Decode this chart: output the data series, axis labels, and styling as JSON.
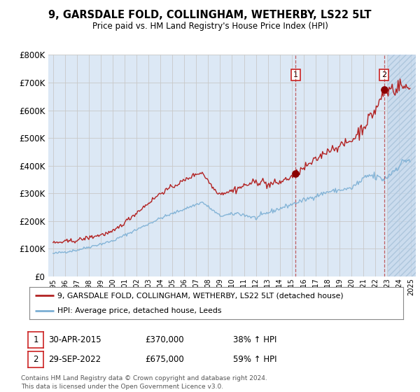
{
  "title": "9, GARSDALE FOLD, COLLINGHAM, WETHERBY, LS22 5LT",
  "subtitle": "Price paid vs. HM Land Registry's House Price Index (HPI)",
  "ylim": [
    0,
    800000
  ],
  "yticks": [
    0,
    100000,
    200000,
    300000,
    400000,
    500000,
    600000,
    700000,
    800000
  ],
  "ytick_labels": [
    "£0",
    "£100K",
    "£200K",
    "£300K",
    "£400K",
    "£500K",
    "£600K",
    "£700K",
    "£800K"
  ],
  "xlim_start": 1994.6,
  "xlim_end": 2025.4,
  "hpi_color": "#7bafd4",
  "price_color": "#b22222",
  "marker_color": "#8b0000",
  "grid_color": "#c8c8c8",
  "bg_color": "#dce8f5",
  "hatch_start": 2023.08,
  "sale1_year": 2015.33,
  "sale2_year": 2022.75,
  "sale1_price": 370000,
  "sale2_price": 675000,
  "legend_label_red": "9, GARSDALE FOLD, COLLINGHAM, WETHERBY, LS22 5LT (detached house)",
  "legend_label_blue": "HPI: Average price, detached house, Leeds",
  "footnote": "Contains HM Land Registry data © Crown copyright and database right 2024.\nThis data is licensed under the Open Government Licence v3.0.",
  "annot1_date": "30-APR-2015",
  "annot1_price": "£370,000",
  "annot1_hpi": "38% ↑ HPI",
  "annot2_date": "29-SEP-2022",
  "annot2_price": "£675,000",
  "annot2_hpi": "59% ↑ HPI"
}
